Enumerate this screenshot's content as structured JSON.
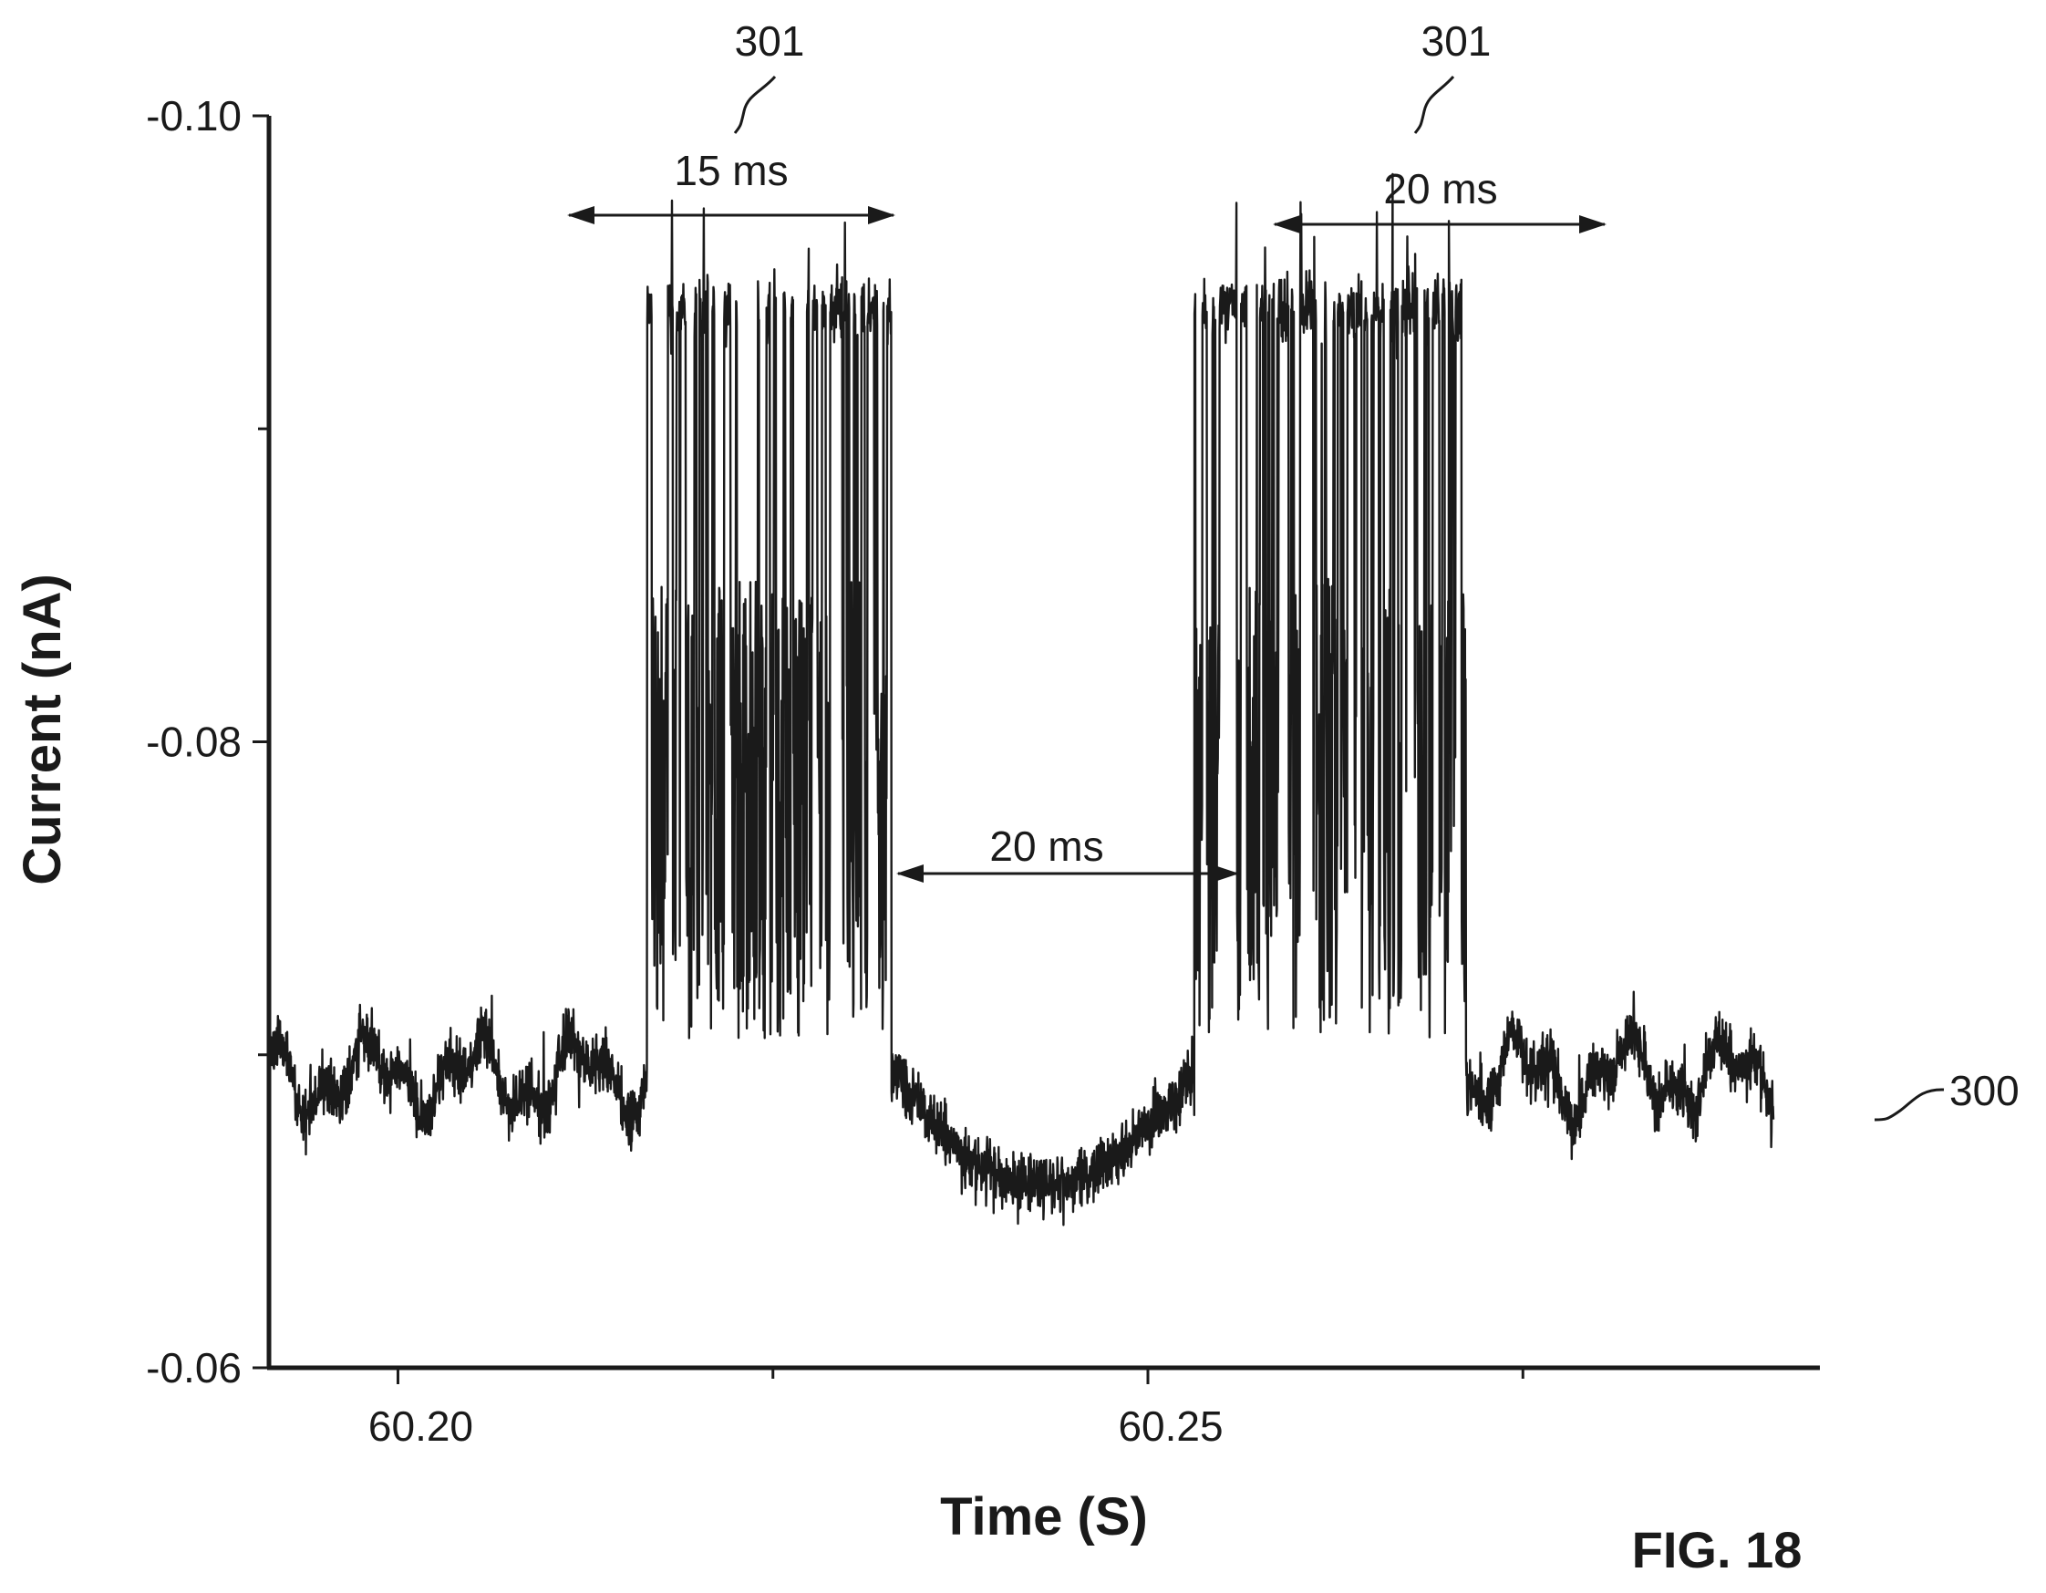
{
  "figure_label": "FIG. 18",
  "chart_data": {
    "type": "line",
    "xlabel": "Time (S)",
    "ylabel": "Current (nA)",
    "xlim": [
      60.1914,
      60.2948
    ],
    "ylim": [
      -0.06,
      -0.1
    ],
    "x_major_ticks": [
      60.2,
      60.25
    ],
    "x_tick_labels": [
      "60.20",
      "60.25"
    ],
    "x_minor_ticks": [
      60.225,
      60.275
    ],
    "y_major_ticks": [
      -0.1,
      -0.08,
      -0.06
    ],
    "y_tick_labels": [
      "-0.10",
      "-0.08",
      "-0.06"
    ],
    "y_minor_ticks": [
      -0.09,
      -0.07
    ],
    "grid": false,
    "legend": "none",
    "series_color": "#1a1a1a",
    "series": [
      {
        "baseline_level": -0.0693,
        "blockade_level": -0.0938,
        "events": [
          {
            "start": 60.2166,
            "end": 60.2329,
            "label": "15 ms",
            "reference": "301"
          },
          {
            "start": 60.2531,
            "end": 60.2712,
            "label": "20 ms",
            "reference": "301"
          }
        ],
        "reference": "300"
      }
    ],
    "annotations": [
      {
        "text": "15 ms",
        "x_start": 60.2005,
        "x_end": 60.2225,
        "y": -0.0967
      },
      {
        "text": "20 ms",
        "x_start": 60.2477,
        "x_end": 60.2699,
        "y": -0.0966
      },
      {
        "text": "20 ms",
        "x_start": 60.2329,
        "x_end": 60.2531,
        "y": -0.0749
      }
    ],
    "reference_numerals": [
      {
        "text": "301",
        "points_to": "first event"
      },
      {
        "text": "301",
        "points_to": "second event"
      },
      {
        "text": "300",
        "points_to": "current trace"
      }
    ]
  }
}
